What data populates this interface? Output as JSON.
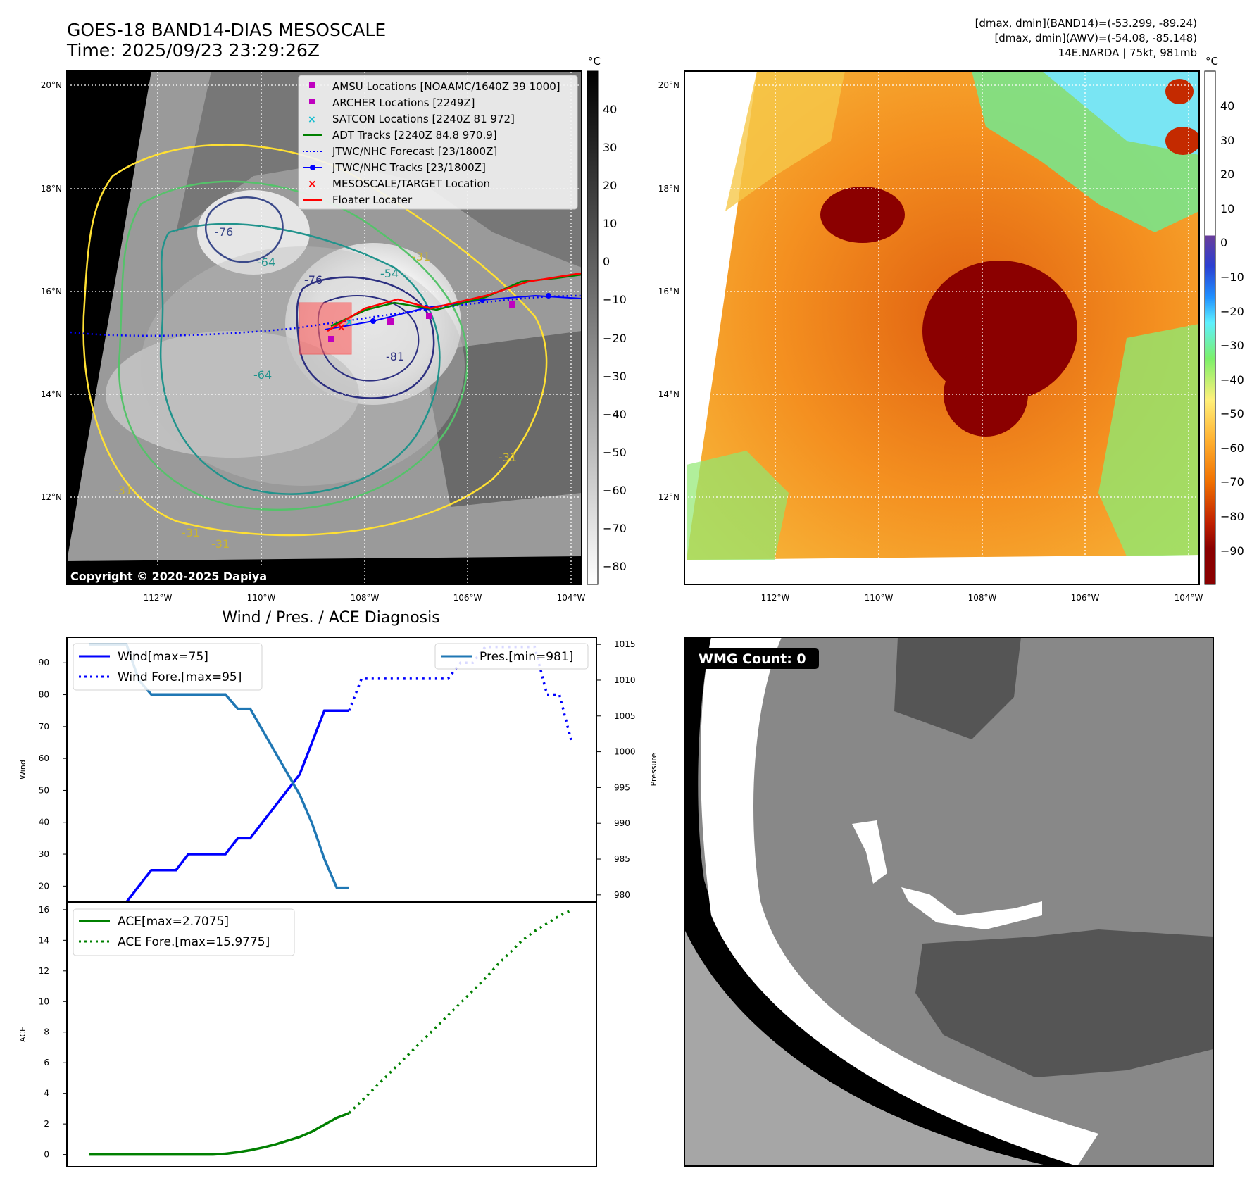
{
  "header": {
    "title_line1": "GOES-18 BAND14-DIAS MESOSCALE",
    "title_line2": "Time: 2025/09/23 23:29:26Z",
    "stats_line1": "[dmax, dmin](BAND14)=(-53.299, -89.24)",
    "stats_line2": "[dmax, dmin](AWV)=(-54.08, -85.148)",
    "stats_line3": "14E.NARDA | 75kt, 981mb"
  },
  "map": {
    "lat_ticks": [
      "20°N",
      "18°N",
      "16°N",
      "14°N",
      "12°N"
    ],
    "lon_ticks": [
      "112°W",
      "110°W",
      "108°W",
      "106°W",
      "104°W"
    ],
    "copyright": "Copyright © 2020-2025 Dapiya",
    "contour_labels": [
      "-76",
      "-64",
      "-31",
      "-54",
      "-76",
      "-81",
      "-64",
      "-31",
      "-31",
      "-31",
      "-31"
    ],
    "legend": [
      "AMSU Locations [NOAAMC/1640Z 39 1000]",
      "ARCHER Locations [2249Z]",
      "SATCON Locations [2240Z 81 972]",
      "ADT Tracks [2240Z 84.8 970.9]",
      "JTWC/NHC Forecast [23/1800Z]",
      "JTWC/NHC Tracks [23/1800Z]",
      "MESOSCALE/TARGET Location",
      "Floater Locater"
    ],
    "colors": {
      "amsu": "#bf00bf",
      "archer": "#bf00bf",
      "satcon": "#17becf",
      "adt": "#008000",
      "forecast": "#0000ff",
      "tracks": "#0000ff",
      "target": "#ff0000",
      "floater": "#ff0000"
    }
  },
  "colorbar_gray": {
    "unit": "°C",
    "ticks": [
      "40",
      "30",
      "20",
      "10",
      "0",
      "−10",
      "−20",
      "−30",
      "−40",
      "−50",
      "−60",
      "−70",
      "−80"
    ]
  },
  "colorbar_color": {
    "unit": "°C",
    "ticks": [
      "40",
      "30",
      "20",
      "10",
      "0",
      "−10",
      "−20",
      "−30",
      "−40",
      "−50",
      "−60",
      "−70",
      "−80",
      "−90"
    ]
  },
  "wmg": {
    "label": "WMG Count: 0"
  },
  "chart_data": [
    {
      "type": "line",
      "title": "Wind / Pres. / ACE Diagnosis",
      "ylabel": "Wind",
      "ylabel_right": "Pressure",
      "ylim": [
        15,
        98
      ],
      "ylim_right": [
        979,
        1016
      ],
      "yticks": [
        "20",
        "30",
        "40",
        "50",
        "60",
        "70",
        "80",
        "90"
      ],
      "yticks_right": [
        "980",
        "985",
        "990",
        "995",
        "1000",
        "1005",
        "1010",
        "1015"
      ],
      "series": [
        {
          "name": "Wind[max=75]",
          "style": "solid",
          "color": "#0000ff",
          "axis": "left",
          "x": [
            0,
            1,
            2,
            3,
            4,
            5,
            6,
            7,
            8,
            9,
            10,
            11,
            12,
            13,
            14,
            15,
            16,
            17,
            18,
            19,
            20,
            21
          ],
          "values": [
            15,
            15,
            15,
            15,
            20,
            25,
            25,
            25,
            30,
            30,
            30,
            30,
            35,
            35,
            40,
            45,
            50,
            55,
            65,
            75,
            75,
            75
          ]
        },
        {
          "name": "Wind Fore.[max=95]",
          "style": "dotted",
          "color": "#0000ff",
          "axis": "left",
          "x": [
            21,
            22,
            23,
            24,
            25,
            26,
            27,
            28,
            29,
            30,
            31,
            32,
            33,
            34,
            35,
            36,
            37,
            38,
            39
          ],
          "values": [
            75,
            85,
            85,
            85,
            85,
            85,
            85,
            85,
            85,
            90,
            90,
            95,
            95,
            95,
            95,
            95,
            80,
            80,
            65
          ]
        },
        {
          "name": "Pres.[min=981]",
          "style": "solid",
          "color": "#1f77b4",
          "axis": "right",
          "x": [
            0,
            1,
            2,
            3,
            4,
            5,
            6,
            7,
            8,
            9,
            10,
            11,
            12,
            13,
            14,
            15,
            16,
            17,
            18,
            19,
            20,
            21
          ],
          "values": [
            1015,
            1015,
            1015,
            1015,
            1010,
            1008,
            1008,
            1008,
            1008,
            1008,
            1008,
            1008,
            1006,
            1006,
            1003,
            1000,
            997,
            994,
            990,
            985,
            981,
            981
          ]
        }
      ]
    },
    {
      "type": "line",
      "ylabel": "ACE",
      "ylim": [
        -0.8,
        16.5
      ],
      "yticks": [
        "0",
        "2",
        "4",
        "6",
        "8",
        "10",
        "12",
        "14",
        "16"
      ],
      "series": [
        {
          "name": "ACE[max=2.7075]",
          "style": "solid",
          "color": "#008000",
          "x": [
            0,
            1,
            2,
            3,
            4,
            5,
            6,
            7,
            8,
            9,
            10,
            11,
            12,
            13,
            14,
            15,
            16,
            17,
            18,
            19,
            20,
            21
          ],
          "values": [
            0,
            0,
            0,
            0,
            0,
            0,
            0,
            0,
            0,
            0,
            0,
            0.05,
            0.15,
            0.28,
            0.45,
            0.65,
            0.9,
            1.15,
            1.5,
            1.95,
            2.4,
            2.7075
          ]
        },
        {
          "name": "ACE Fore.[max=15.9775]",
          "style": "dotted",
          "color": "#008000",
          "x": [
            21,
            22,
            23,
            24,
            25,
            26,
            27,
            28,
            29,
            30,
            31,
            32,
            33,
            34,
            35,
            36,
            37,
            38,
            39
          ],
          "values": [
            2.7075,
            3.5,
            4.3,
            5.1,
            5.9,
            6.7,
            7.5,
            8.3,
            9.1,
            9.9,
            10.7,
            11.5,
            12.4,
            13.2,
            14.0,
            14.6,
            15.1,
            15.6,
            15.9775
          ]
        }
      ]
    }
  ]
}
